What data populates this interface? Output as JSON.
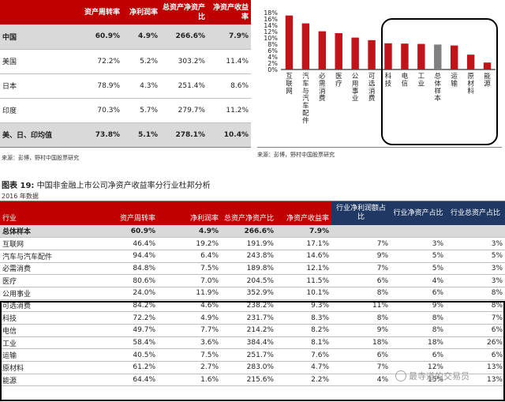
{
  "top_table": {
    "headers": [
      "",
      "资产周转率",
      "净利润率",
      "总资产净资产比",
      "净资产收益率"
    ],
    "rows": [
      {
        "label": "中国",
        "vals": [
          "60.9%",
          "4.9%",
          "266.6%",
          "7.9%"
        ],
        "highlight": true
      },
      {
        "label": "美国",
        "vals": [
          "72.2%",
          "5.2%",
          "303.2%",
          "11.4%"
        ],
        "highlight": false
      },
      {
        "label": "日本",
        "vals": [
          "78.9%",
          "4.3%",
          "251.4%",
          "8.6%"
        ],
        "highlight": false
      },
      {
        "label": "印度",
        "vals": [
          "70.3%",
          "5.7%",
          "279.7%",
          "11.2%"
        ],
        "highlight": false
      },
      {
        "label": "美、日、印均值",
        "vals": [
          "73.8%",
          "5.1%",
          "278.1%",
          "10.4%"
        ],
        "highlight": true
      }
    ],
    "source": "来源：彭博，野村中国股票研究"
  },
  "chart_source": "来源：彭博，野村中国股票研究",
  "chart_data": {
    "type": "bar",
    "categories": [
      "互联网",
      "汽车与汽车配件",
      "必需消费",
      "医疗",
      "公用事业",
      "可选消费",
      "科技",
      "电信",
      "工业",
      "总体样本",
      "运输",
      "原材料",
      "能源"
    ],
    "values": [
      17.1,
      14.6,
      12.1,
      11.5,
      10.1,
      9.3,
      8.3,
      8.2,
      8.1,
      7.9,
      7.6,
      4.7,
      2.2
    ],
    "highlight_category": "总体样本",
    "colors": {
      "bar": "#c0141b",
      "highlight": "#808080"
    },
    "yticks": [
      "0%",
      "2%",
      "4%",
      "6%",
      "8%",
      "10%",
      "12%",
      "14%",
      "16%",
      "18%"
    ],
    "ylim": [
      0,
      18
    ],
    "title": "",
    "xlabel": "",
    "ylabel": "",
    "grid": false
  },
  "bottom_table": {
    "title_prefix": "图表 19:",
    "title_text": " 中国非金融上市公司净资产收益率分行业杜邦分析",
    "subtitle": "2016 年数据",
    "headers": [
      "行业",
      "资产周转率",
      "净利润率",
      "总资产净资产比",
      "净资产收益率",
      "行业净利润额占比",
      "行业净资产占比",
      "行业总资产占比"
    ],
    "rows": [
      {
        "vals": [
          "总体样本",
          "60.9%",
          "4.9%",
          "266.6%",
          "7.9%",
          "",
          "",
          ""
        ],
        "total": true
      },
      {
        "vals": [
          "互联网",
          "46.4%",
          "19.2%",
          "191.9%",
          "17.1%",
          "7%",
          "3%",
          "3%"
        ]
      },
      {
        "vals": [
          "汽车与汽车配件",
          "94.4%",
          "6.4%",
          "243.8%",
          "14.6%",
          "9%",
          "5%",
          "5%"
        ]
      },
      {
        "vals": [
          "必需消费",
          "84.8%",
          "7.5%",
          "189.8%",
          "12.1%",
          "7%",
          "5%",
          "3%"
        ]
      },
      {
        "vals": [
          "医疗",
          "80.6%",
          "7.0%",
          "204.5%",
          "11.5%",
          "6%",
          "4%",
          "3%"
        ]
      },
      {
        "vals": [
          "公用事业",
          "24.0%",
          "11.9%",
          "352.9%",
          "10.1%",
          "8%",
          "6%",
          "8%"
        ]
      },
      {
        "vals": [
          "可选消费",
          "84.2%",
          "4.6%",
          "238.2%",
          "9.3%",
          "11%",
          "9%",
          "8%"
        ]
      },
      {
        "vals": [
          "科技",
          "72.2%",
          "4.9%",
          "231.7%",
          "8.3%",
          "8%",
          "8%",
          "7%"
        ]
      },
      {
        "vals": [
          "电信",
          "49.7%",
          "7.7%",
          "214.2%",
          "8.2%",
          "9%",
          "8%",
          "6%"
        ]
      },
      {
        "vals": [
          "工业",
          "58.4%",
          "3.6%",
          "384.4%",
          "8.1%",
          "18%",
          "18%",
          "26%"
        ]
      },
      {
        "vals": [
          "运输",
          "40.5%",
          "7.5%",
          "251.7%",
          "7.6%",
          "6%",
          "6%",
          "6%"
        ]
      },
      {
        "vals": [
          "原材料",
          "61.2%",
          "2.7%",
          "283.0%",
          "4.7%",
          "7%",
          "12%",
          "13%"
        ]
      },
      {
        "vals": [
          "能源",
          "64.4%",
          "1.6%",
          "215.6%",
          "2.2%",
          "4%",
          "15%",
          "13%"
        ]
      }
    ]
  },
  "watermark": "最寺道的交易员"
}
